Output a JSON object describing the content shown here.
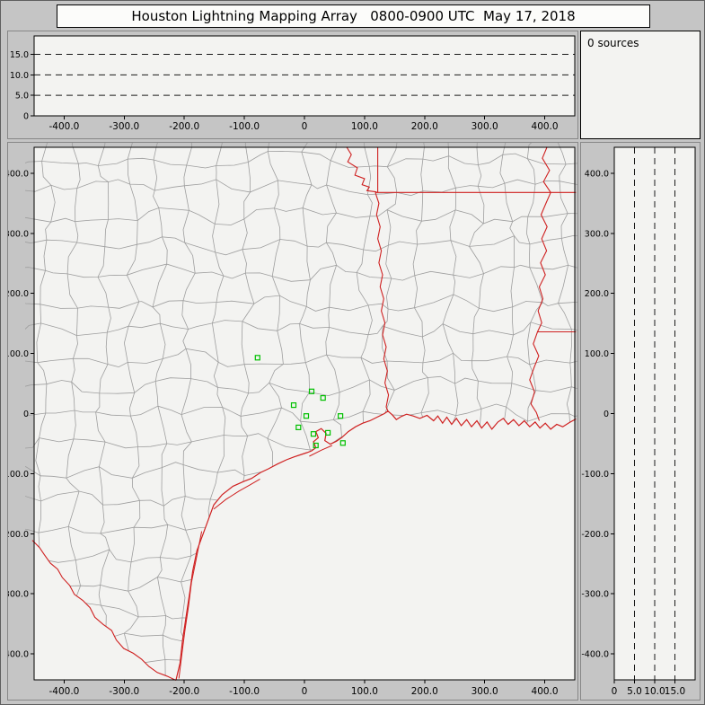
{
  "window": {
    "title": "Houston Lightning Mapping Array   0800-0900 UTC  May 17, 2018"
  },
  "colors": {
    "window_bg": "#c5c5c5",
    "plot_bg": "#f3f3f1",
    "plot_border": "#000000",
    "county": "#9e9e9e",
    "state": "#cf2020",
    "station": "#00c000",
    "dash": "#1a1a1a",
    "text": "#000000"
  },
  "sources_panel": {
    "label": "0 sources"
  },
  "ew_altitude_panel": {
    "y_ticks": [
      {
        "label": "15.0",
        "value": 15
      },
      {
        "label": "10.0",
        "value": 10
      },
      {
        "label": "5.0",
        "value": 5
      },
      {
        "label": "0",
        "value": 0
      }
    ],
    "dashed_levels": [
      5,
      10,
      15
    ],
    "y_range_km": [
      0,
      19.5
    ]
  },
  "map_panel": {
    "x_range_km": [
      -450,
      450
    ],
    "x_ticks": [
      {
        "label": "-400.0",
        "value": -400
      },
      {
        "label": "-300.0",
        "value": -300
      },
      {
        "label": "-200.0",
        "value": -200
      },
      {
        "label": "-100.0",
        "value": -100
      },
      {
        "label": "0",
        "value": 0
      },
      {
        "label": "100.0",
        "value": 100
      },
      {
        "label": "200.0",
        "value": 200
      },
      {
        "label": "300.0",
        "value": 300
      },
      {
        "label": "400.0",
        "value": 400
      }
    ],
    "y_ticks": [
      {
        "label": "400.0",
        "value": 400
      },
      {
        "label": "300.0",
        "value": 300
      },
      {
        "label": "200.0",
        "value": 200
      },
      {
        "label": "100.0",
        "value": 100
      },
      {
        "label": "0",
        "value": 0
      },
      {
        "label": "-100.0",
        "value": -100
      },
      {
        "label": "-200.0",
        "value": -200
      },
      {
        "label": "-300.0",
        "value": -300
      },
      {
        "label": "-400.0",
        "value": -400
      }
    ],
    "stations_km": [
      [
        -78,
        93
      ],
      [
        12,
        37
      ],
      [
        31,
        26
      ],
      [
        -18,
        14
      ],
      [
        3,
        -4
      ],
      [
        -10,
        -23
      ],
      [
        15,
        -34
      ],
      [
        39,
        -32
      ],
      [
        60,
        -4
      ],
      [
        19,
        -53
      ],
      [
        64,
        -49
      ]
    ]
  },
  "ns_altitude_panel": {
    "x_ticks": [
      {
        "label": "0",
        "value": 0
      },
      {
        "label": "5.0",
        "value": 5
      },
      {
        "label": "10.0",
        "value": 10
      },
      {
        "label": "15.0",
        "value": 15
      }
    ],
    "dashed_levels": [
      5,
      10,
      15
    ],
    "x_range_km": [
      0,
      20
    ]
  },
  "map_geometry": {
    "county_seed": 1337,
    "county_step_km": 48,
    "coastline": [
      [
        -214,
        -444
      ],
      [
        -207,
        -415
      ],
      [
        -203,
        -378
      ],
      [
        -197,
        -338
      ],
      [
        -191,
        -299
      ],
      [
        -186,
        -262
      ],
      [
        -179,
        -228
      ],
      [
        -169,
        -201
      ],
      [
        -159,
        -174
      ],
      [
        -151,
        -152
      ],
      [
        -137,
        -135
      ],
      [
        -119,
        -121
      ],
      [
        -101,
        -113
      ],
      [
        -88,
        -108
      ],
      [
        -73,
        -98
      ],
      [
        -60,
        -92
      ],
      [
        -45,
        -84
      ],
      [
        -30,
        -77
      ],
      [
        -17,
        -72
      ],
      [
        -5,
        -68
      ],
      [
        4,
        -65
      ],
      [
        12,
        -62
      ],
      [
        19,
        -57
      ],
      [
        15,
        -47
      ],
      [
        23,
        -40
      ],
      [
        19,
        -30
      ],
      [
        28,
        -25
      ],
      [
        36,
        -33
      ],
      [
        34,
        -45
      ],
      [
        43,
        -51
      ],
      [
        53,
        -46
      ],
      [
        62,
        -40
      ],
      [
        73,
        -30
      ],
      [
        85,
        -22
      ],
      [
        97,
        -16
      ],
      [
        109,
        -12
      ],
      [
        121,
        -6
      ],
      [
        133,
        0
      ],
      [
        139,
        4
      ],
      [
        146,
        -2
      ],
      [
        153,
        -10
      ],
      [
        161,
        -5
      ],
      [
        170,
        -1
      ],
      [
        181,
        -4
      ],
      [
        192,
        -8
      ],
      [
        204,
        -3
      ],
      [
        215,
        -12
      ],
      [
        222,
        -4
      ],
      [
        230,
        -16
      ],
      [
        237,
        -6
      ],
      [
        245,
        -18
      ],
      [
        253,
        -8
      ],
      [
        261,
        -20
      ],
      [
        270,
        -10
      ],
      [
        278,
        -22
      ],
      [
        287,
        -12
      ],
      [
        295,
        -24
      ],
      [
        304,
        -14
      ],
      [
        312,
        -26
      ],
      [
        322,
        -14
      ],
      [
        331,
        -8
      ],
      [
        339,
        -18
      ],
      [
        348,
        -10
      ],
      [
        357,
        -20
      ],
      [
        366,
        -12
      ],
      [
        375,
        -22
      ],
      [
        384,
        -14
      ],
      [
        392,
        -24
      ],
      [
        401,
        -16
      ],
      [
        410,
        -26
      ],
      [
        420,
        -18
      ],
      [
        430,
        -22
      ],
      [
        441,
        -15
      ],
      [
        452,
        -9
      ]
    ],
    "rio_grande": [
      [
        -214,
        -444
      ],
      [
        -229,
        -437
      ],
      [
        -245,
        -431
      ],
      [
        -259,
        -421
      ],
      [
        -271,
        -409
      ],
      [
        -285,
        -399
      ],
      [
        -301,
        -391
      ],
      [
        -313,
        -377
      ],
      [
        -321,
        -361
      ],
      [
        -335,
        -351
      ],
      [
        -349,
        -339
      ],
      [
        -357,
        -323
      ],
      [
        -369,
        -311
      ],
      [
        -383,
        -301
      ],
      [
        -391,
        -286
      ],
      [
        -403,
        -273
      ],
      [
        -411,
        -259
      ],
      [
        -423,
        -249
      ],
      [
        -433,
        -235
      ],
      [
        -441,
        -223
      ],
      [
        -453,
        -211
      ]
    ],
    "state_lines": [
      {
        "name": "red-river-tx-ok",
        "pts": [
          [
            70,
            444
          ],
          [
            78,
            431
          ],
          [
            72,
            419
          ],
          [
            88,
            409
          ],
          [
            84,
            397
          ],
          [
            100,
            391
          ],
          [
            96,
            381
          ],
          [
            108,
            377
          ],
          [
            104,
            371
          ],
          [
            120,
            369
          ]
        ]
      },
      {
        "name": "ok-ar-border",
        "pts": [
          [
            122,
            444
          ],
          [
            122,
            368
          ]
        ]
      },
      {
        "name": "ar-la-33n-border",
        "pts": [
          [
            118,
            368
          ],
          [
            452,
            368
          ]
        ]
      },
      {
        "name": "tx-la-sabine-border",
        "pts": [
          [
            118,
            368
          ],
          [
            124,
            350
          ],
          [
            120,
            331
          ],
          [
            126,
            311
          ],
          [
            122,
            291
          ],
          [
            128,
            271
          ],
          [
            124,
            251
          ],
          [
            130,
            231
          ],
          [
            126,
            211
          ],
          [
            132,
            191
          ],
          [
            128,
            171
          ],
          [
            134,
            151
          ],
          [
            130,
            131
          ],
          [
            136,
            111
          ],
          [
            132,
            91
          ],
          [
            138,
            71
          ],
          [
            134,
            51
          ],
          [
            140,
            31
          ],
          [
            136,
            11
          ],
          [
            139,
            4
          ]
        ]
      },
      {
        "name": "mississippi-river",
        "pts": [
          [
            404,
            444
          ],
          [
            396,
            425
          ],
          [
            408,
            405
          ],
          [
            398,
            386
          ],
          [
            410,
            368
          ],
          [
            402,
            350
          ],
          [
            394,
            331
          ],
          [
            404,
            311
          ],
          [
            395,
            291
          ],
          [
            403,
            271
          ],
          [
            393,
            251
          ],
          [
            401,
            231
          ],
          [
            391,
            211
          ],
          [
            397,
            191
          ],
          [
            389,
            171
          ],
          [
            395,
            151
          ],
          [
            388,
            136
          ],
          [
            381,
            116
          ],
          [
            390,
            96
          ],
          [
            382,
            76
          ],
          [
            375,
            56
          ],
          [
            383,
            36
          ],
          [
            377,
            16
          ],
          [
            386,
            2
          ],
          [
            391,
            -12
          ]
        ]
      },
      {
        "name": "la-ms-31n-border",
        "pts": [
          [
            388,
            136
          ],
          [
            452,
            136
          ]
        ]
      }
    ],
    "barrier_islands": [
      [
        [
          -209,
          -441
        ],
        [
          -204,
          -401
        ],
        [
          -199,
          -361
        ],
        [
          -193,
          -321
        ],
        [
          -188,
          -281
        ],
        [
          -182,
          -251
        ],
        [
          -176,
          -221
        ],
        [
          -171,
          -196
        ]
      ],
      [
        [
          -151,
          -159
        ],
        [
          -131,
          -143
        ],
        [
          -109,
          -129
        ],
        [
          -91,
          -119
        ],
        [
          -74,
          -109
        ]
      ],
      [
        [
          8,
          -71
        ],
        [
          28,
          -61
        ],
        [
          46,
          -53
        ]
      ]
    ]
  }
}
